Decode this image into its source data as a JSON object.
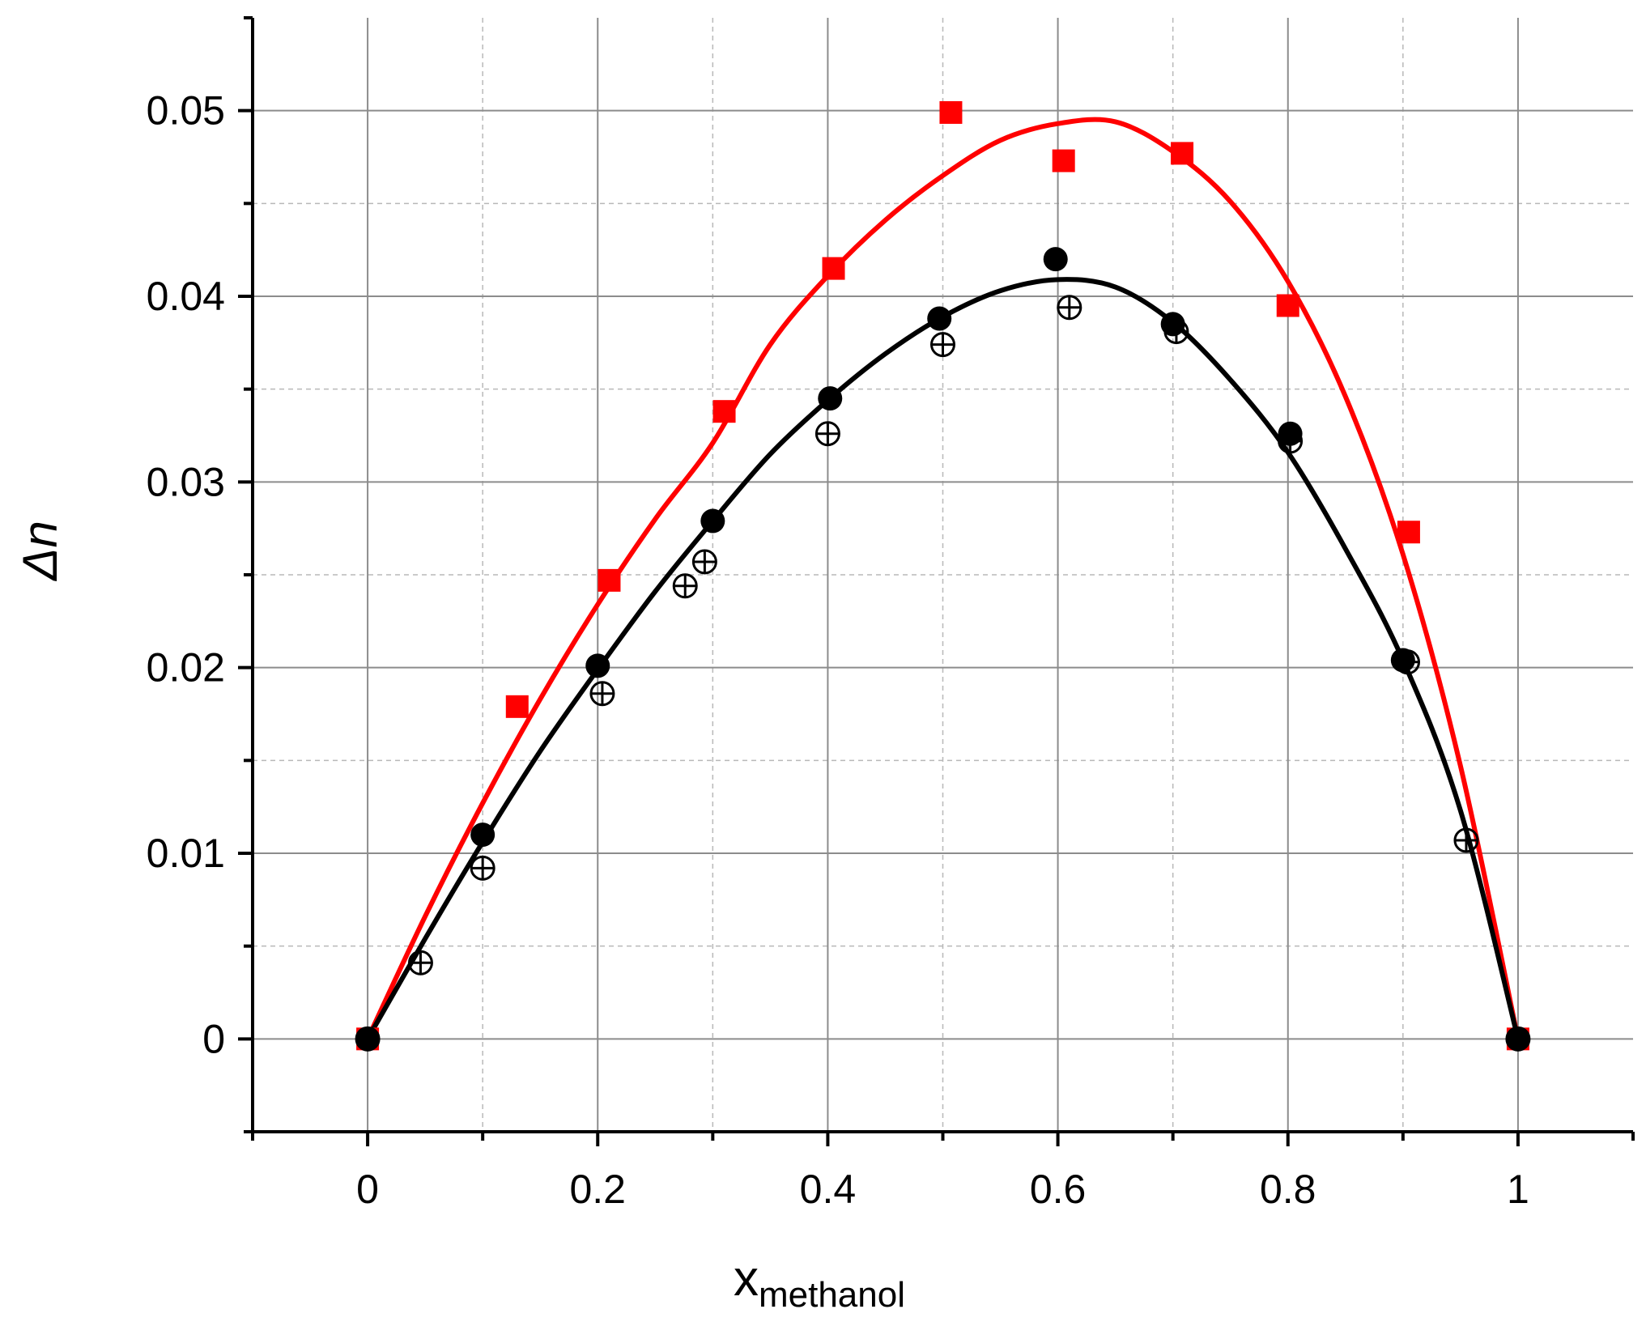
{
  "chart_data": {
    "type": "scatter",
    "title": "",
    "xlabel": "x",
    "xlabel_sub": "methanol",
    "ylabel": "Δn",
    "xlim": [
      -0.1,
      1.1
    ],
    "ylim": [
      -0.005,
      0.055
    ],
    "x_ticks": [
      0,
      0.2,
      0.4,
      0.6,
      0.8,
      1
    ],
    "x_tick_labels": [
      "0",
      "0.2",
      "0.4",
      "0.6",
      "0.8",
      "1"
    ],
    "y_ticks": [
      0,
      0.01,
      0.02,
      0.03,
      0.04,
      0.05
    ],
    "y_tick_labels": [
      "0",
      "0.01",
      "0.02",
      "0.03",
      "0.04",
      "0.05"
    ],
    "grid": true,
    "colors": {
      "red": "#ff0000",
      "black": "#000000"
    },
    "series": [
      {
        "marker": "square",
        "color": "#ff0000",
        "x": [
          0,
          0.13,
          0.21,
          0.31,
          0.405,
          0.507,
          0.605,
          0.708,
          0.8,
          0.905,
          1.0
        ],
        "y": [
          0,
          0.0179,
          0.0247,
          0.0338,
          0.0415,
          0.0499,
          0.0473,
          0.0477,
          0.0395,
          0.0273,
          0
        ]
      },
      {
        "marker": "filled-circle",
        "color": "#000000",
        "x": [
          0,
          0.1,
          0.2,
          0.3,
          0.402,
          0.497,
          0.598,
          0.7,
          0.802,
          0.9,
          1.0
        ],
        "y": [
          0,
          0.011,
          0.0201,
          0.0279,
          0.0345,
          0.0388,
          0.042,
          0.0385,
          0.0326,
          0.0204,
          0
        ]
      },
      {
        "marker": "crossed-circle",
        "color": "#000000",
        "x": [
          0,
          0.046,
          0.1,
          0.204,
          0.276,
          0.293,
          0.4,
          0.5,
          0.61,
          0.703,
          0.802,
          0.904,
          0.955,
          1.0
        ],
        "y": [
          0,
          0.0041,
          0.0092,
          0.0186,
          0.0244,
          0.0257,
          0.0326,
          0.0374,
          0.0394,
          0.0381,
          0.0322,
          0.0203,
          0.0107,
          0
        ]
      }
    ],
    "fit_lines": [
      {
        "color": "#ff0000",
        "x": [
          0,
          0.05,
          0.1,
          0.15,
          0.2,
          0.25,
          0.3,
          0.35,
          0.4,
          0.45,
          0.5,
          0.55,
          0.6,
          0.65,
          0.7,
          0.75,
          0.8,
          0.85,
          0.9,
          0.95,
          1.0
        ],
        "y": [
          0,
          0.0066,
          0.0127,
          0.0183,
          0.0234,
          0.028,
          0.0321,
          0.0374,
          0.0411,
          0.0441,
          0.0465,
          0.0484,
          0.0493,
          0.0494,
          0.0478,
          0.0451,
          0.0408,
          0.0346,
          0.0261,
          0.0147,
          0
        ]
      },
      {
        "color": "#000000",
        "x": [
          0,
          0.05,
          0.1,
          0.15,
          0.2,
          0.25,
          0.3,
          0.35,
          0.4,
          0.45,
          0.5,
          0.55,
          0.6,
          0.65,
          0.7,
          0.75,
          0.8,
          0.85,
          0.9,
          0.95,
          1.0
        ],
        "y": [
          0,
          0.0054,
          0.0106,
          0.0155,
          0.0199,
          0.0241,
          0.0279,
          0.0315,
          0.0344,
          0.0369,
          0.0389,
          0.0403,
          0.0409,
          0.0405,
          0.0386,
          0.0355,
          0.0316,
          0.0264,
          0.0204,
          0.0123,
          0
        ]
      }
    ]
  }
}
